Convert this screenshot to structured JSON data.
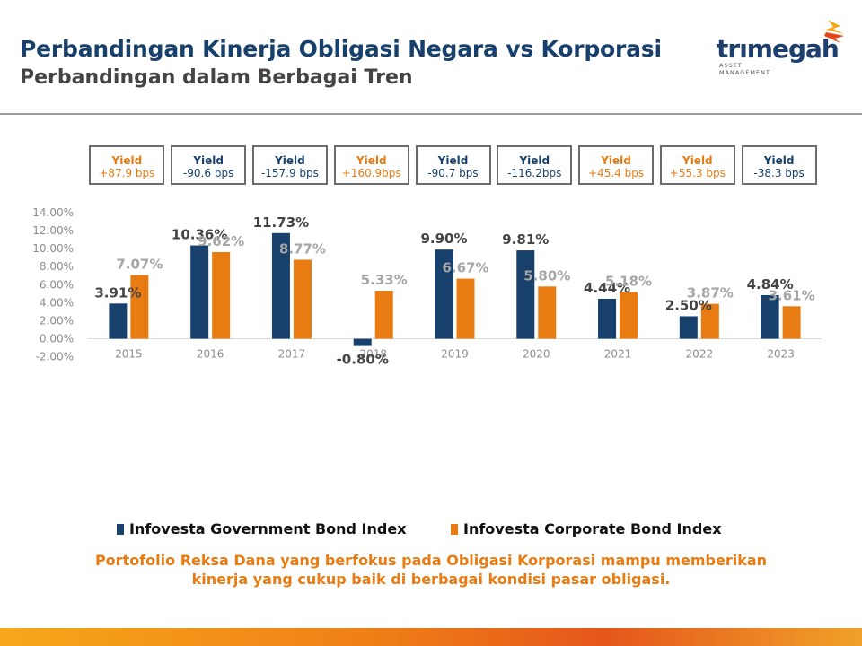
{
  "header": {
    "title": "Perbandingan Kinerja Obligasi Negara vs Korporasi",
    "subtitle": "Perbandingan dalam Berbagai Tren"
  },
  "logo": {
    "wordmark": "trımegah",
    "sub_line1": "ASSET",
    "sub_line2": "MANAGEMENT",
    "color": "#1c3f6e",
    "accent_colors": [
      "#f6a81a",
      "#e5461b"
    ]
  },
  "yield_boxes": [
    {
      "label": "Yield",
      "value": "+87.9 bps",
      "color_type": "corp"
    },
    {
      "label": "Yield",
      "value": "-90.6 bps",
      "color_type": "gov"
    },
    {
      "label": "Yield",
      "value": "-157.9 bps",
      "color_type": "gov"
    },
    {
      "label": "Yield",
      "value": "+160.9bps",
      "color_type": "corp"
    },
    {
      "label": "Yield",
      "value": "-90.7 bps",
      "color_type": "gov"
    },
    {
      "label": "Yield",
      "value": "-116.2bps",
      "color_type": "gov"
    },
    {
      "label": "Yield",
      "value": "+45.4 bps",
      "color_type": "corp"
    },
    {
      "label": "Yield",
      "value": "+55.3 bps",
      "color_type": "corp"
    },
    {
      "label": "Yield",
      "value": "-38.3 bps",
      "color_type": "gov"
    }
  ],
  "chart_data": {
    "type": "bar",
    "categories": [
      "2015",
      "2016",
      "2017",
      "2018",
      "2019",
      "2020",
      "2021",
      "2022",
      "2023"
    ],
    "series": [
      {
        "name": "Infovesta Government Bond Index",
        "color": "#17406d",
        "label_color": "#444444",
        "values": [
          3.91,
          10.36,
          11.73,
          -0.8,
          9.9,
          9.81,
          4.44,
          2.5,
          4.84
        ],
        "labels": [
          "3.91%",
          "10.36%",
          "11.73%",
          "-0.80%",
          "9.90%",
          "9.81%",
          "4.44%",
          "2.50%",
          "4.84%"
        ]
      },
      {
        "name": "Infovesta Corporate Bond Index",
        "color": "#e87c12",
        "label_color": "#a6a6a6",
        "values": [
          7.07,
          9.62,
          8.77,
          5.33,
          6.67,
          5.8,
          5.18,
          3.87,
          3.61
        ],
        "labels": [
          "7.07%",
          "9.62%",
          "8.77%",
          "5.33%",
          "6.67%",
          "5.80%",
          "5.18%",
          "3.87%",
          "3.61%"
        ]
      }
    ],
    "ylim": [
      -2,
      14
    ],
    "yticks": [
      -2,
      0,
      2,
      4,
      6,
      8,
      10,
      12,
      14
    ],
    "ytick_labels": [
      "-2.00%",
      "0.00%",
      "2.00%",
      "4.00%",
      "6.00%",
      "8.00%",
      "10.00%",
      "12.00%",
      "14.00%"
    ],
    "grid": false,
    "legend_position": "bottom"
  },
  "footnote": {
    "line1": "Portofolio Reksa Dana yang berfokus pada Obligasi Korporasi mampu memberikan",
    "line2": "kinerja yang cukup baik di berbagai kondisi pasar obligasi."
  }
}
